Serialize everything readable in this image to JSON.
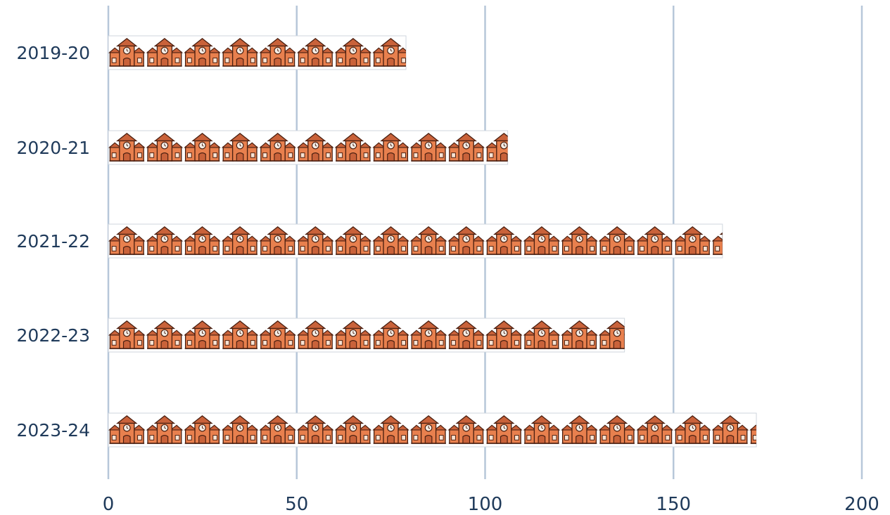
{
  "chart_data": {
    "type": "bar",
    "orientation": "horizontal",
    "style": "pictograph",
    "icon": "school-building-icon",
    "categories": [
      "2019-20",
      "2020-21",
      "2021-22",
      "2022-23",
      "2023-24"
    ],
    "values": [
      79,
      106,
      163,
      137,
      172
    ],
    "xlim": [
      0,
      200
    ],
    "xticks": [
      "0",
      "50",
      "100",
      "150",
      "200"
    ],
    "grid": true,
    "colors": {
      "icon_fill": "#e8804e",
      "icon_outline": "#4a1f10",
      "grid": "#b7c7d9",
      "label": "#1f3a5a"
    }
  }
}
